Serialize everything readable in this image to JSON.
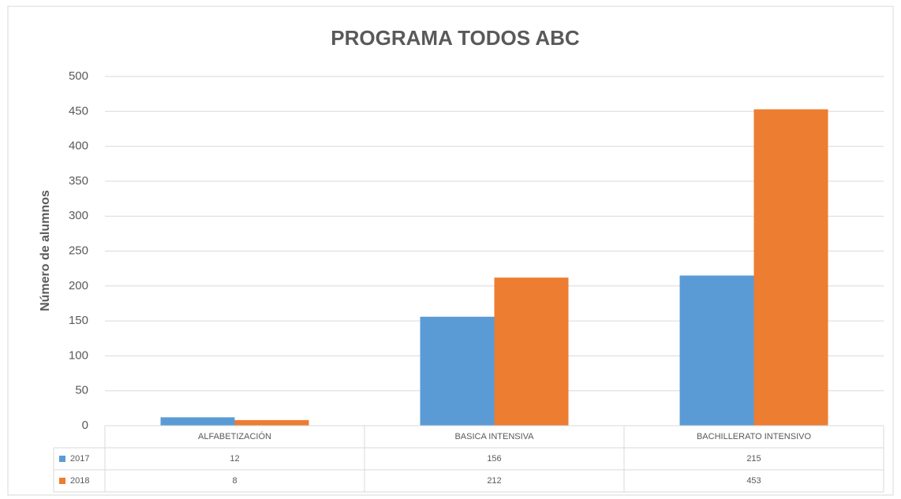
{
  "chart_data": {
    "type": "bar",
    "title": "PROGRAMA TODOS ABC",
    "y_label": "Número de alumnos",
    "categories": [
      "ALFABETIZACIÓN",
      "BASICA INTENSIVA",
      "BACHILLERATO INTENSIVO"
    ],
    "series": [
      {
        "name": "2017",
        "color": "#5b9bd5",
        "values": [
          12,
          156,
          215
        ]
      },
      {
        "name": "2018",
        "color": "#ed7d31",
        "values": [
          8,
          212,
          453
        ]
      }
    ],
    "ylim": [
      0,
      500
    ],
    "yticks": [
      0,
      50,
      100,
      150,
      200,
      250,
      300,
      350,
      400,
      450,
      500
    ],
    "grid": true,
    "data_table": true
  }
}
